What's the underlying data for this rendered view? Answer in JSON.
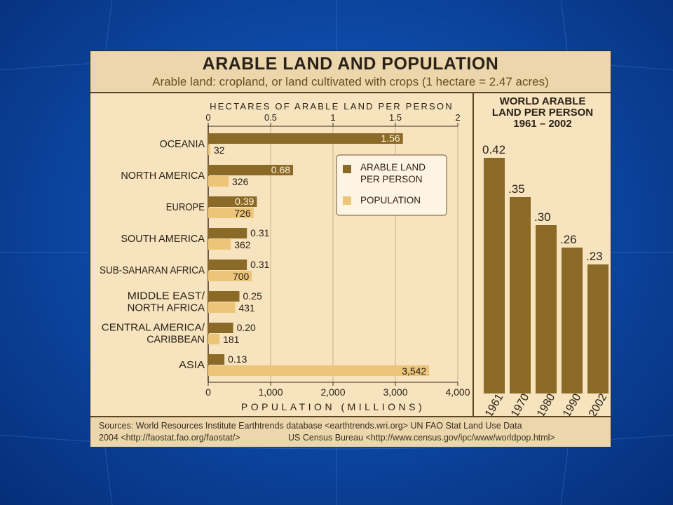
{
  "title": "ARABLE LAND AND POPULATION",
  "subtitle": "Arable land: cropland, or land cultivated with crops (1 hectare = 2.47 acres)",
  "footer": {
    "line1": "Sources: World Resources Institute Earthtrends database <earthtrends.wri.org> UN FAO Stat Land Use Data",
    "line2a": "2004 <http://faostat.fao.org/faostat/>",
    "line2b": "US Census Bureau <http://www.census.gov/ipc/www/worldpop.html>"
  },
  "colors": {
    "arable": "#8b6a28",
    "population": "#ecc57a",
    "panel": "#f7e3bd",
    "text": "#2a2118"
  },
  "chart_data": [
    {
      "type": "bar",
      "orientation": "horizontal",
      "categories": [
        "OCEANIA",
        "NORTH AMERICA",
        "EUROPE",
        "SOUTH AMERICA",
        "SUB-SAHARAN AFRICA",
        "MIDDLE EAST/ NORTH AFRICA",
        "CENTRAL AMERICA/ CARIBBEAN",
        "ASIA"
      ],
      "category_lines": [
        [
          "OCEANIA"
        ],
        [
          "NORTH AMERICA"
        ],
        [
          "EUROPE"
        ],
        [
          "SOUTH AMERICA"
        ],
        [
          "SUB-SAHARAN AFRICA"
        ],
        [
          "MIDDLE EAST/",
          "NORTH AFRICA"
        ],
        [
          "CENTRAL AMERICA/",
          "CARIBBEAN"
        ],
        [
          "ASIA"
        ]
      ],
      "series": [
        {
          "name": "ARABLE LAND PER PERSON",
          "legend_lines": [
            "ARABLE LAND",
            "PER PERSON"
          ],
          "values": [
            1.56,
            0.68,
            0.39,
            0.31,
            0.31,
            0.25,
            0.2,
            0.13
          ],
          "labels": [
            "1.56",
            "0.68",
            "0.39",
            "0.31",
            "0.31",
            "0.25",
            "0.20",
            "0.13"
          ]
        },
        {
          "name": "POPULATION",
          "legend_lines": [
            "POPULATION"
          ],
          "values": [
            32,
            326,
            726,
            362,
            700,
            431,
            181,
            3542
          ],
          "labels": [
            "32",
            "326",
            "726",
            "362",
            "700",
            "431",
            "181",
            "3,542"
          ]
        }
      ],
      "top_axis": {
        "label": "HECTARES OF ARABLE LAND PER PERSON",
        "range": [
          0,
          2
        ],
        "ticks": [
          0,
          0.5,
          1,
          1.5,
          2
        ],
        "tick_labels": [
          "0",
          "0.5",
          "1",
          "1.5",
          "2"
        ]
      },
      "bottom_axis": {
        "label": "POPULATION (MILLIONS)",
        "range": [
          0,
          4000
        ],
        "ticks": [
          0,
          1000,
          2000,
          3000,
          4000
        ],
        "tick_labels": [
          "0",
          "1,000",
          "2,000",
          "3,000",
          "4,000"
        ]
      },
      "grid": true,
      "legend_position": "top-right"
    },
    {
      "type": "bar",
      "title": "WORLD ARABLE LAND PER PERSON 1961 – 2002",
      "title_lines": [
        "WORLD ARABLE",
        "LAND PER PERSON",
        "1961 – 2002"
      ],
      "categories": [
        "1961",
        "1970",
        "1980",
        "1990",
        "2002"
      ],
      "values": [
        0.42,
        0.35,
        0.3,
        0.26,
        0.23
      ],
      "labels": [
        "0.42",
        ".35",
        ".30",
        ".26",
        ".23"
      ],
      "ylim": [
        0,
        0.42
      ],
      "grid": false
    }
  ]
}
